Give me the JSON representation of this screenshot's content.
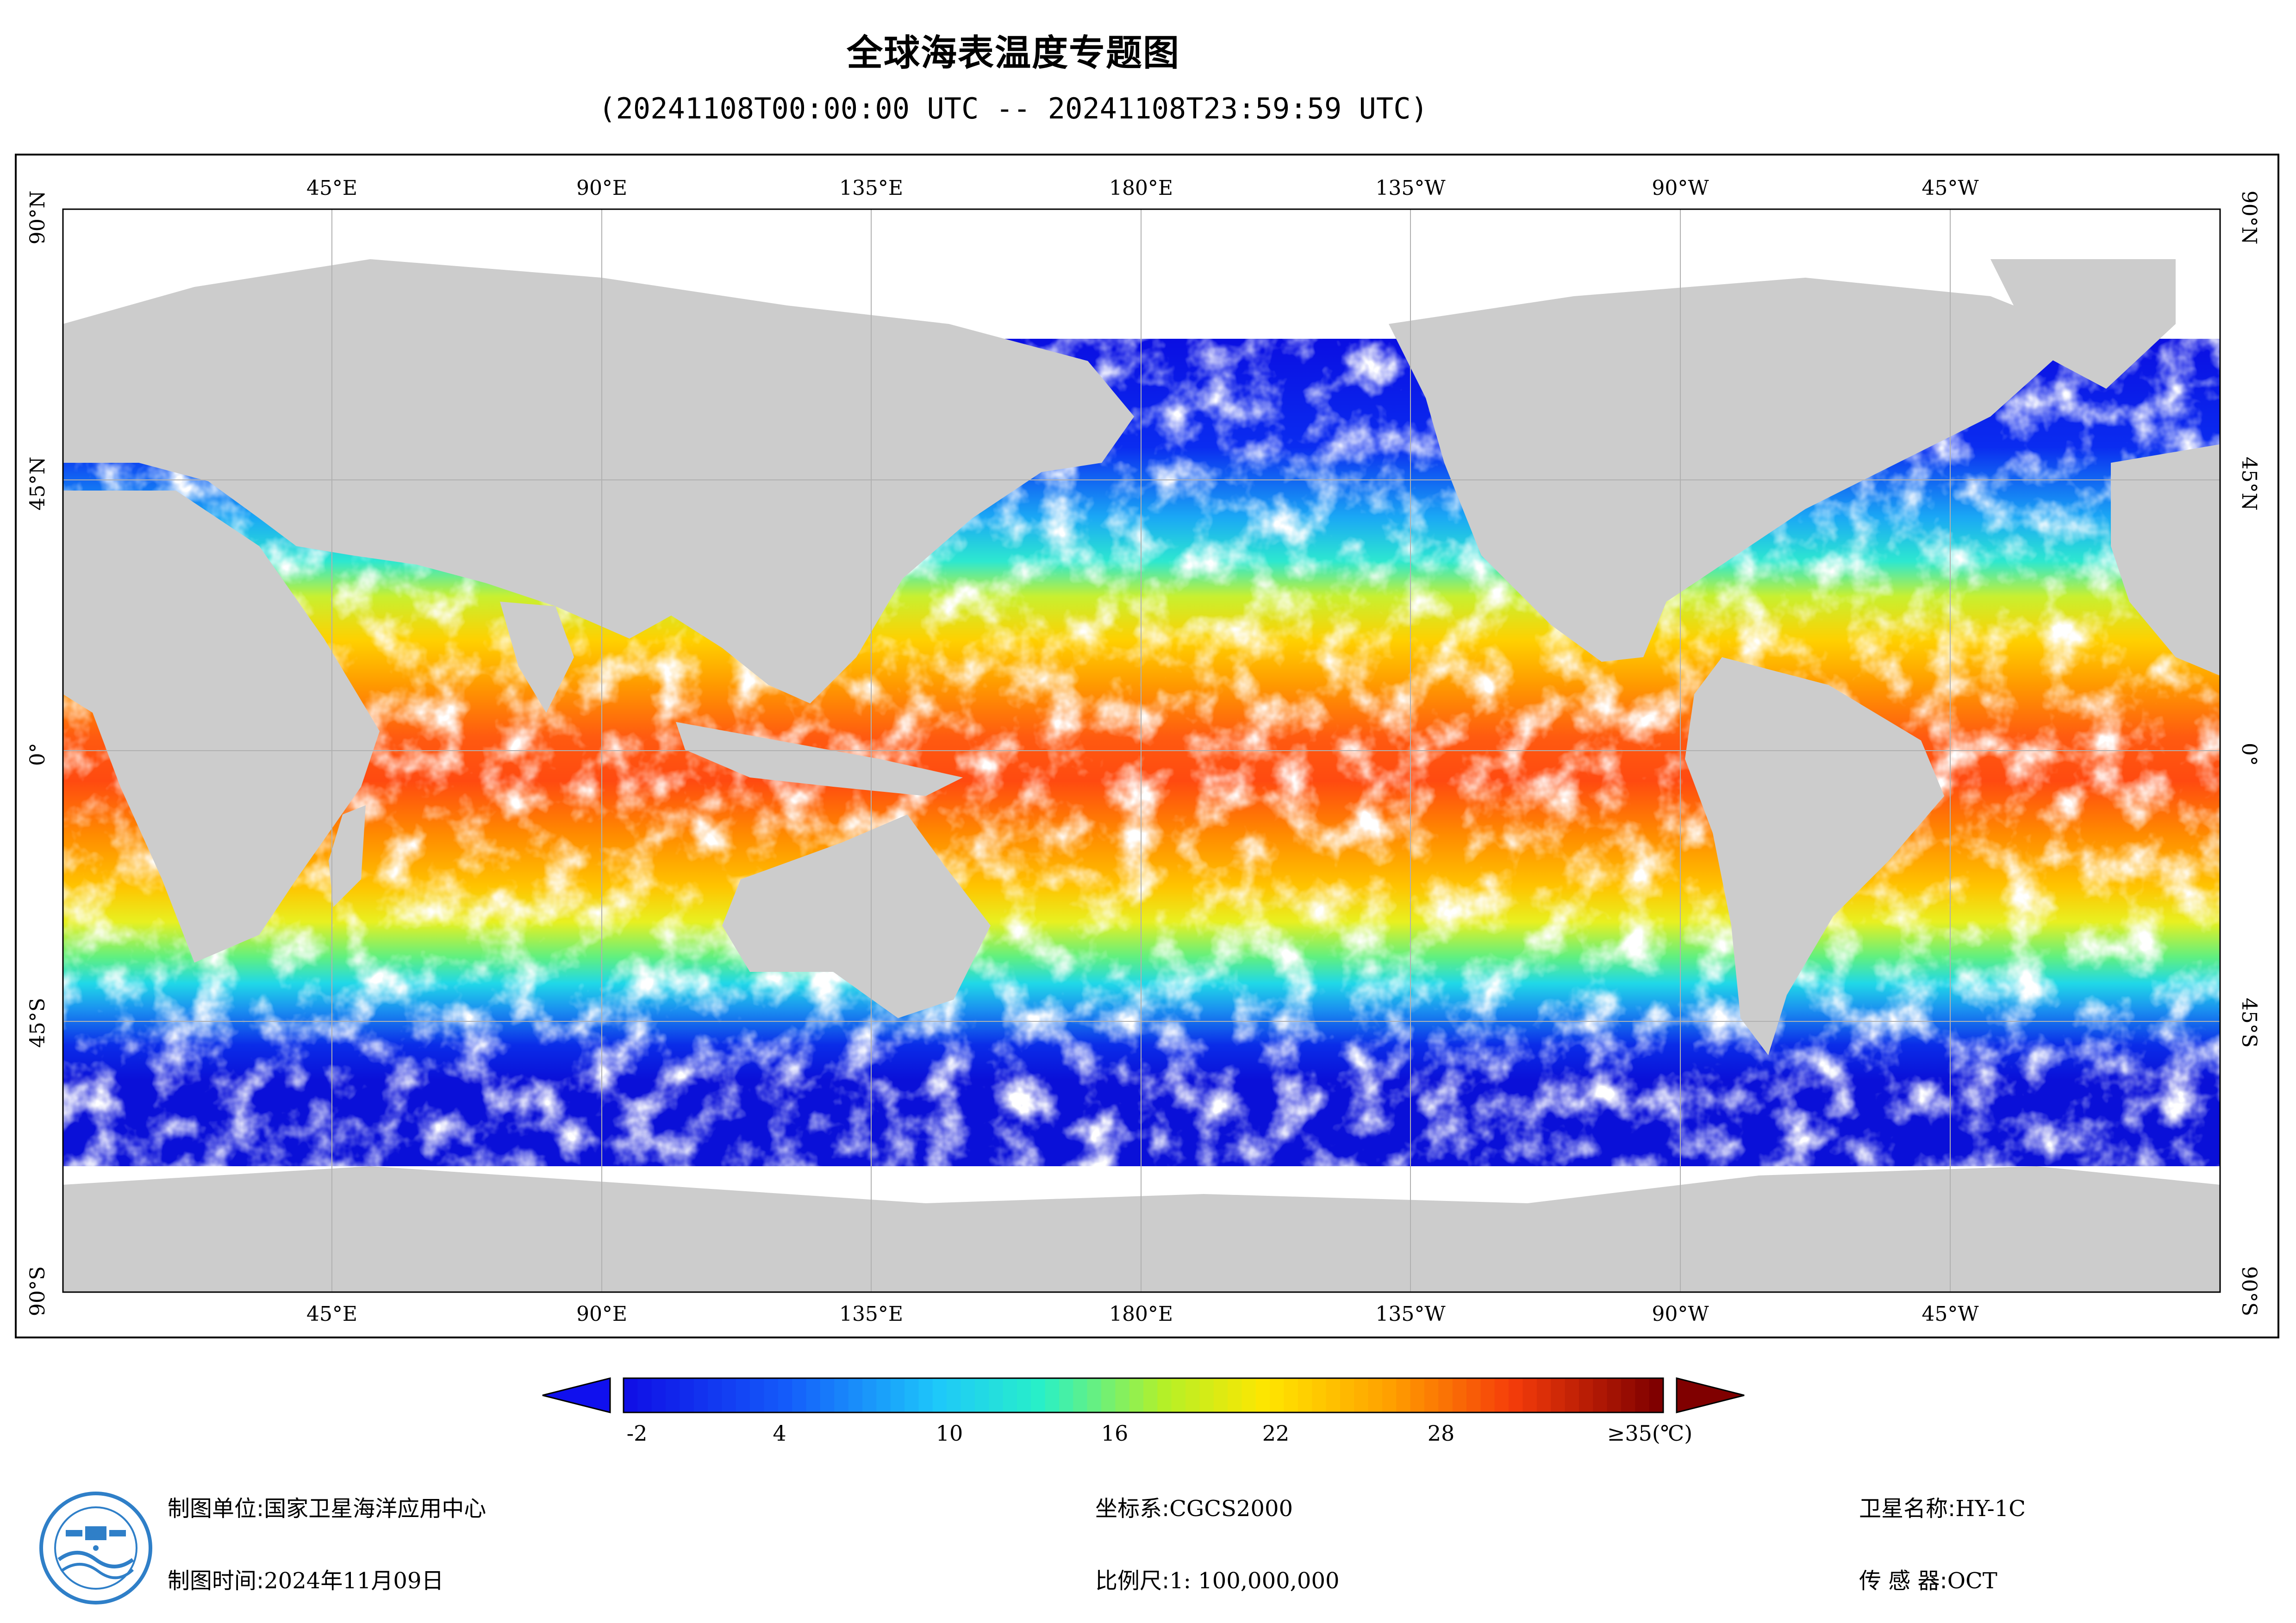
{
  "header": {
    "title": "全球海表温度专题图",
    "subtitle": "(20241108T00:00:00 UTC -- 20241108T23:59:59 UTC)"
  },
  "map": {
    "lon_labels": [
      "45°E",
      "90°E",
      "135°E",
      "180°E",
      "135°W",
      "90°W",
      "45°W"
    ],
    "lat_labels": [
      "90°N",
      "45°N",
      "0°",
      "45°S",
      "90°S"
    ],
    "colors": {
      "land": "#cccccc",
      "no_data": "#ffffff",
      "grid": "#b0b0b0"
    }
  },
  "colorbar": {
    "tick_labels": [
      "-2",
      "4",
      "10",
      "16",
      "22",
      "28",
      "≥35(℃)"
    ],
    "tick_values": [
      -2,
      4,
      10,
      16,
      22,
      28,
      35
    ],
    "range": [
      -2,
      35
    ],
    "under_color": "#1010ee",
    "over_color": "#800000"
  },
  "footer": {
    "org_label": "制图单位:",
    "org_value": "国家卫星海洋应用中心",
    "time_label": "制图时间:",
    "time_value": "2024年11月09日",
    "crs_label": "坐标系:",
    "crs_value": "CGCS2000",
    "scale_label": "比例尺:",
    "scale_value": "1: 100,000,000",
    "sat_label": "卫星名称:",
    "sat_value": "HY-1C",
    "sensor_label": "传 感 器:",
    "sensor_value": "OCT"
  },
  "logo": {
    "icon": "nsoas-emblem-icon"
  }
}
